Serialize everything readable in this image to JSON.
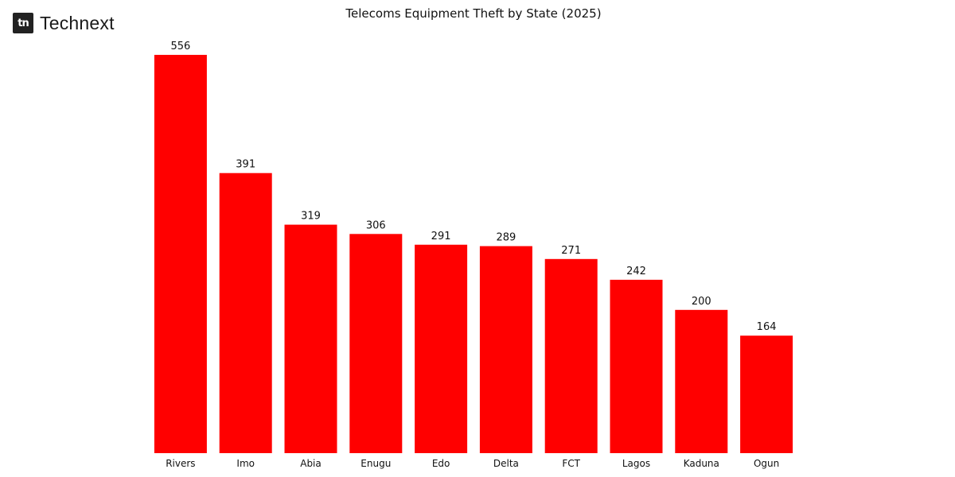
{
  "brand": {
    "mark": "tn",
    "name": "Technext",
    "mark_color": "#222222"
  },
  "colors": {
    "bar": "#ff0000",
    "text": "#111111"
  },
  "chart_data": {
    "type": "bar",
    "title": "Telecoms Equipment Theft by State (2025)",
    "xlabel": "",
    "ylabel": "",
    "categories": [
      "Rivers",
      "Imo",
      "Abia",
      "Enugu",
      "Edo",
      "Delta",
      "FCT",
      "Lagos",
      "Kaduna",
      "Ogun"
    ],
    "values": [
      556,
      391,
      319,
      306,
      291,
      289,
      271,
      242,
      200,
      164
    ],
    "data_labels": [
      "556",
      "391",
      "319",
      "306",
      "291",
      "289",
      "271",
      "242",
      "200",
      "164"
    ],
    "ylim": [
      0,
      556
    ],
    "grid": false,
    "legend": "none"
  }
}
